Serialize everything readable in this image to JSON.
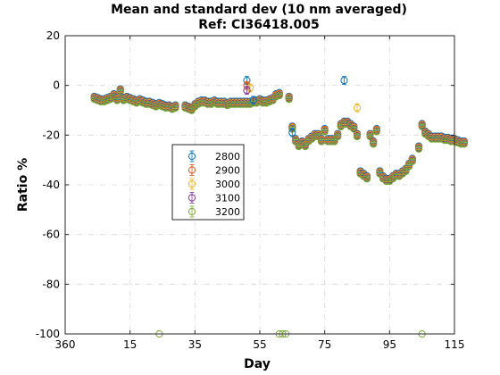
{
  "chart_data": {
    "type": "scatter",
    "title": "Mean and standard dev (10 nm averaged)",
    "subtitle": "Ref: CI36418.005",
    "xlabel": "Day",
    "ylabel": "Ratio %",
    "x_tick_labels": [
      "360",
      "15",
      "35",
      "55",
      "75",
      "95",
      "115"
    ],
    "x_ticks_seq": [
      0,
      20,
      40,
      60,
      80,
      100,
      120
    ],
    "y_ticks": [
      20,
      0,
      -20,
      -40,
      -60,
      -80,
      -100
    ],
    "xlim_seq": [
      0,
      120
    ],
    "ylim": [
      -100,
      20
    ],
    "grid": true,
    "legend_position": "center-left",
    "series": [
      {
        "name": "2800",
        "color": "#0072BD"
      },
      {
        "name": "2900",
        "color": "#D95319"
      },
      {
        "name": "3000",
        "color": "#EDB120"
      },
      {
        "name": "3100",
        "color": "#7E2F8E"
      },
      {
        "name": "3200",
        "color": "#77AC30"
      }
    ],
    "base_points": [
      [
        9,
        -5
      ],
      [
        10,
        -5.5
      ],
      [
        11,
        -6
      ],
      [
        12,
        -6
      ],
      [
        13,
        -5.5
      ],
      [
        14,
        -5
      ],
      [
        15,
        -4
      ],
      [
        16,
        -5.5
      ],
      [
        17,
        -2
      ],
      [
        18,
        -5.5
      ],
      [
        19,
        -5
      ],
      [
        20,
        -5.5
      ],
      [
        21,
        -6
      ],
      [
        22,
        -6.5
      ],
      [
        23,
        -6
      ],
      [
        24,
        -6.5
      ],
      [
        25,
        -7
      ],
      [
        26,
        -7
      ],
      [
        27,
        -7.5
      ],
      [
        28,
        -8
      ],
      [
        29,
        -7.5
      ],
      [
        30,
        -8
      ],
      [
        31,
        -8.5
      ],
      [
        32,
        -8.5
      ],
      [
        33,
        -9
      ],
      [
        34,
        -8.5
      ],
      [
        37,
        -8.5
      ],
      [
        38,
        -9
      ],
      [
        39,
        -9.5
      ],
      [
        40,
        -8
      ],
      [
        41,
        -7
      ],
      [
        42,
        -6.5
      ],
      [
        43,
        -6.5
      ],
      [
        44,
        -7
      ],
      [
        45,
        -7
      ],
      [
        46,
        -6.5
      ],
      [
        47,
        -7
      ],
      [
        48,
        -7
      ],
      [
        49,
        -7
      ],
      [
        50,
        -7.5
      ],
      [
        51,
        -7
      ],
      [
        52,
        -7
      ],
      [
        53,
        -7
      ],
      [
        54,
        -7
      ],
      [
        55,
        -7
      ],
      [
        56,
        -7
      ],
      [
        57,
        -7
      ],
      [
        58,
        -6.5
      ],
      [
        59,
        -6.5
      ],
      [
        60,
        -6
      ],
      [
        61,
        -6.5
      ],
      [
        62,
        -6.5
      ],
      [
        63,
        -6
      ],
      [
        64,
        -5.5
      ],
      [
        65,
        -4
      ],
      [
        66,
        -3.5
      ],
      [
        69,
        -5
      ],
      [
        70,
        -17
      ],
      [
        71,
        -22
      ],
      [
        72,
        -24
      ],
      [
        73,
        -23
      ],
      [
        74,
        -24
      ],
      [
        75,
        -22
      ],
      [
        76,
        -21
      ],
      [
        77,
        -20
      ],
      [
        78,
        -20
      ],
      [
        79,
        -22
      ],
      [
        80,
        -18
      ],
      [
        81,
        -22
      ],
      [
        82,
        -22
      ],
      [
        83,
        -22
      ],
      [
        84,
        -20
      ],
      [
        85,
        -16
      ],
      [
        86,
        -15
      ],
      [
        87,
        -15
      ],
      [
        88,
        -16
      ],
      [
        89,
        -17
      ],
      [
        90,
        -20
      ],
      [
        91,
        -35
      ],
      [
        92,
        -36
      ],
      [
        93,
        -37
      ],
      [
        94,
        -20
      ],
      [
        95,
        -23
      ],
      [
        96,
        -18
      ],
      [
        97,
        -35
      ],
      [
        98,
        -37
      ],
      [
        99,
        -38
      ],
      [
        100,
        -38
      ],
      [
        101,
        -37
      ],
      [
        102,
        -36
      ],
      [
        103,
        -36
      ],
      [
        104,
        -35
      ],
      [
        105,
        -34
      ],
      [
        106,
        -32
      ],
      [
        107,
        -30
      ],
      [
        109,
        -25
      ],
      [
        110,
        -16
      ],
      [
        111,
        -19
      ],
      [
        112,
        -20
      ],
      [
        113,
        -21
      ],
      [
        114,
        -21
      ],
      [
        115,
        -21
      ],
      [
        116,
        -21
      ],
      [
        117,
        -21.5
      ],
      [
        118,
        -21.5
      ],
      [
        119,
        -22
      ],
      [
        120,
        -22
      ],
      [
        121,
        -22.5
      ],
      [
        122,
        -23
      ],
      [
        123,
        -23
      ]
    ],
    "outliers": [
      {
        "x": 56,
        "y": 2,
        "series": "2800"
      },
      {
        "x": 56,
        "y": 0,
        "series": "2900"
      },
      {
        "x": 57,
        "y": -1,
        "series": "3000"
      },
      {
        "x": 56,
        "y": -2,
        "series": "3100"
      },
      {
        "x": 86,
        "y": 2,
        "series": "2800"
      },
      {
        "x": 90,
        "y": -9,
        "series": "3000"
      },
      {
        "x": 70,
        "y": -19,
        "series": "2800"
      },
      {
        "x": 58,
        "y": -6,
        "series": "2800"
      },
      {
        "x": 29,
        "y": -100,
        "series": "3200"
      },
      {
        "x": 66,
        "y": -100,
        "series": "3200"
      },
      {
        "x": 67,
        "y": -100,
        "series": "3200"
      },
      {
        "x": 68,
        "y": -100,
        "series": "3200"
      },
      {
        "x": 110,
        "y": -100,
        "series": "3200"
      }
    ]
  }
}
